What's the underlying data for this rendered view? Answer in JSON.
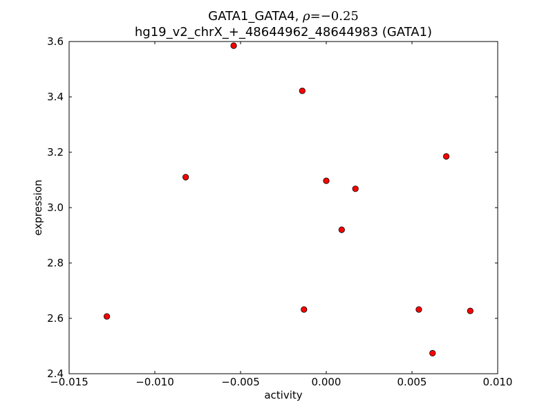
{
  "chart_data": {
    "type": "scatter",
    "title": "GATA1_GATA4, ρ=−0.25",
    "title_parts": {
      "prefix": "GATA1_GATA4, ",
      "rho_symbol": "ρ",
      "rho_value": "=−0.25"
    },
    "subtitle": "hg19_v2_chrX_+_48644962_48644983 (GATA1)",
    "xlabel": "activity",
    "ylabel": "expression",
    "xlim": [
      -0.015,
      0.01
    ],
    "ylim": [
      2.4,
      3.6
    ],
    "x_ticks": [
      -0.015,
      -0.01,
      -0.005,
      0.0,
      0.005,
      0.01
    ],
    "x_tick_labels": [
      "−0.015",
      "−0.010",
      "−0.005",
      "0.000",
      "0.005",
      "0.010"
    ],
    "y_ticks": [
      2.4,
      2.6,
      2.8,
      3.0,
      3.2,
      3.4,
      3.6
    ],
    "y_tick_labels": [
      "2.4",
      "2.6",
      "2.8",
      "3.0",
      "3.2",
      "3.4",
      "3.6"
    ],
    "grid": false,
    "legend": "none",
    "marker_color": "#ff0000",
    "marker_edge_color": "#000000",
    "points": [
      {
        "x": -0.0128,
        "y": 2.607
      },
      {
        "x": -0.0082,
        "y": 3.11
      },
      {
        "x": -0.0054,
        "y": 3.585
      },
      {
        "x": -0.0014,
        "y": 3.422
      },
      {
        "x": -0.0013,
        "y": 2.632
      },
      {
        "x": 0.0,
        "y": 3.097
      },
      {
        "x": 0.0009,
        "y": 2.92
      },
      {
        "x": 0.0017,
        "y": 3.068
      },
      {
        "x": 0.0054,
        "y": 2.632
      },
      {
        "x": 0.0062,
        "y": 2.474
      },
      {
        "x": 0.007,
        "y": 3.185
      },
      {
        "x": 0.0084,
        "y": 2.627
      }
    ]
  }
}
